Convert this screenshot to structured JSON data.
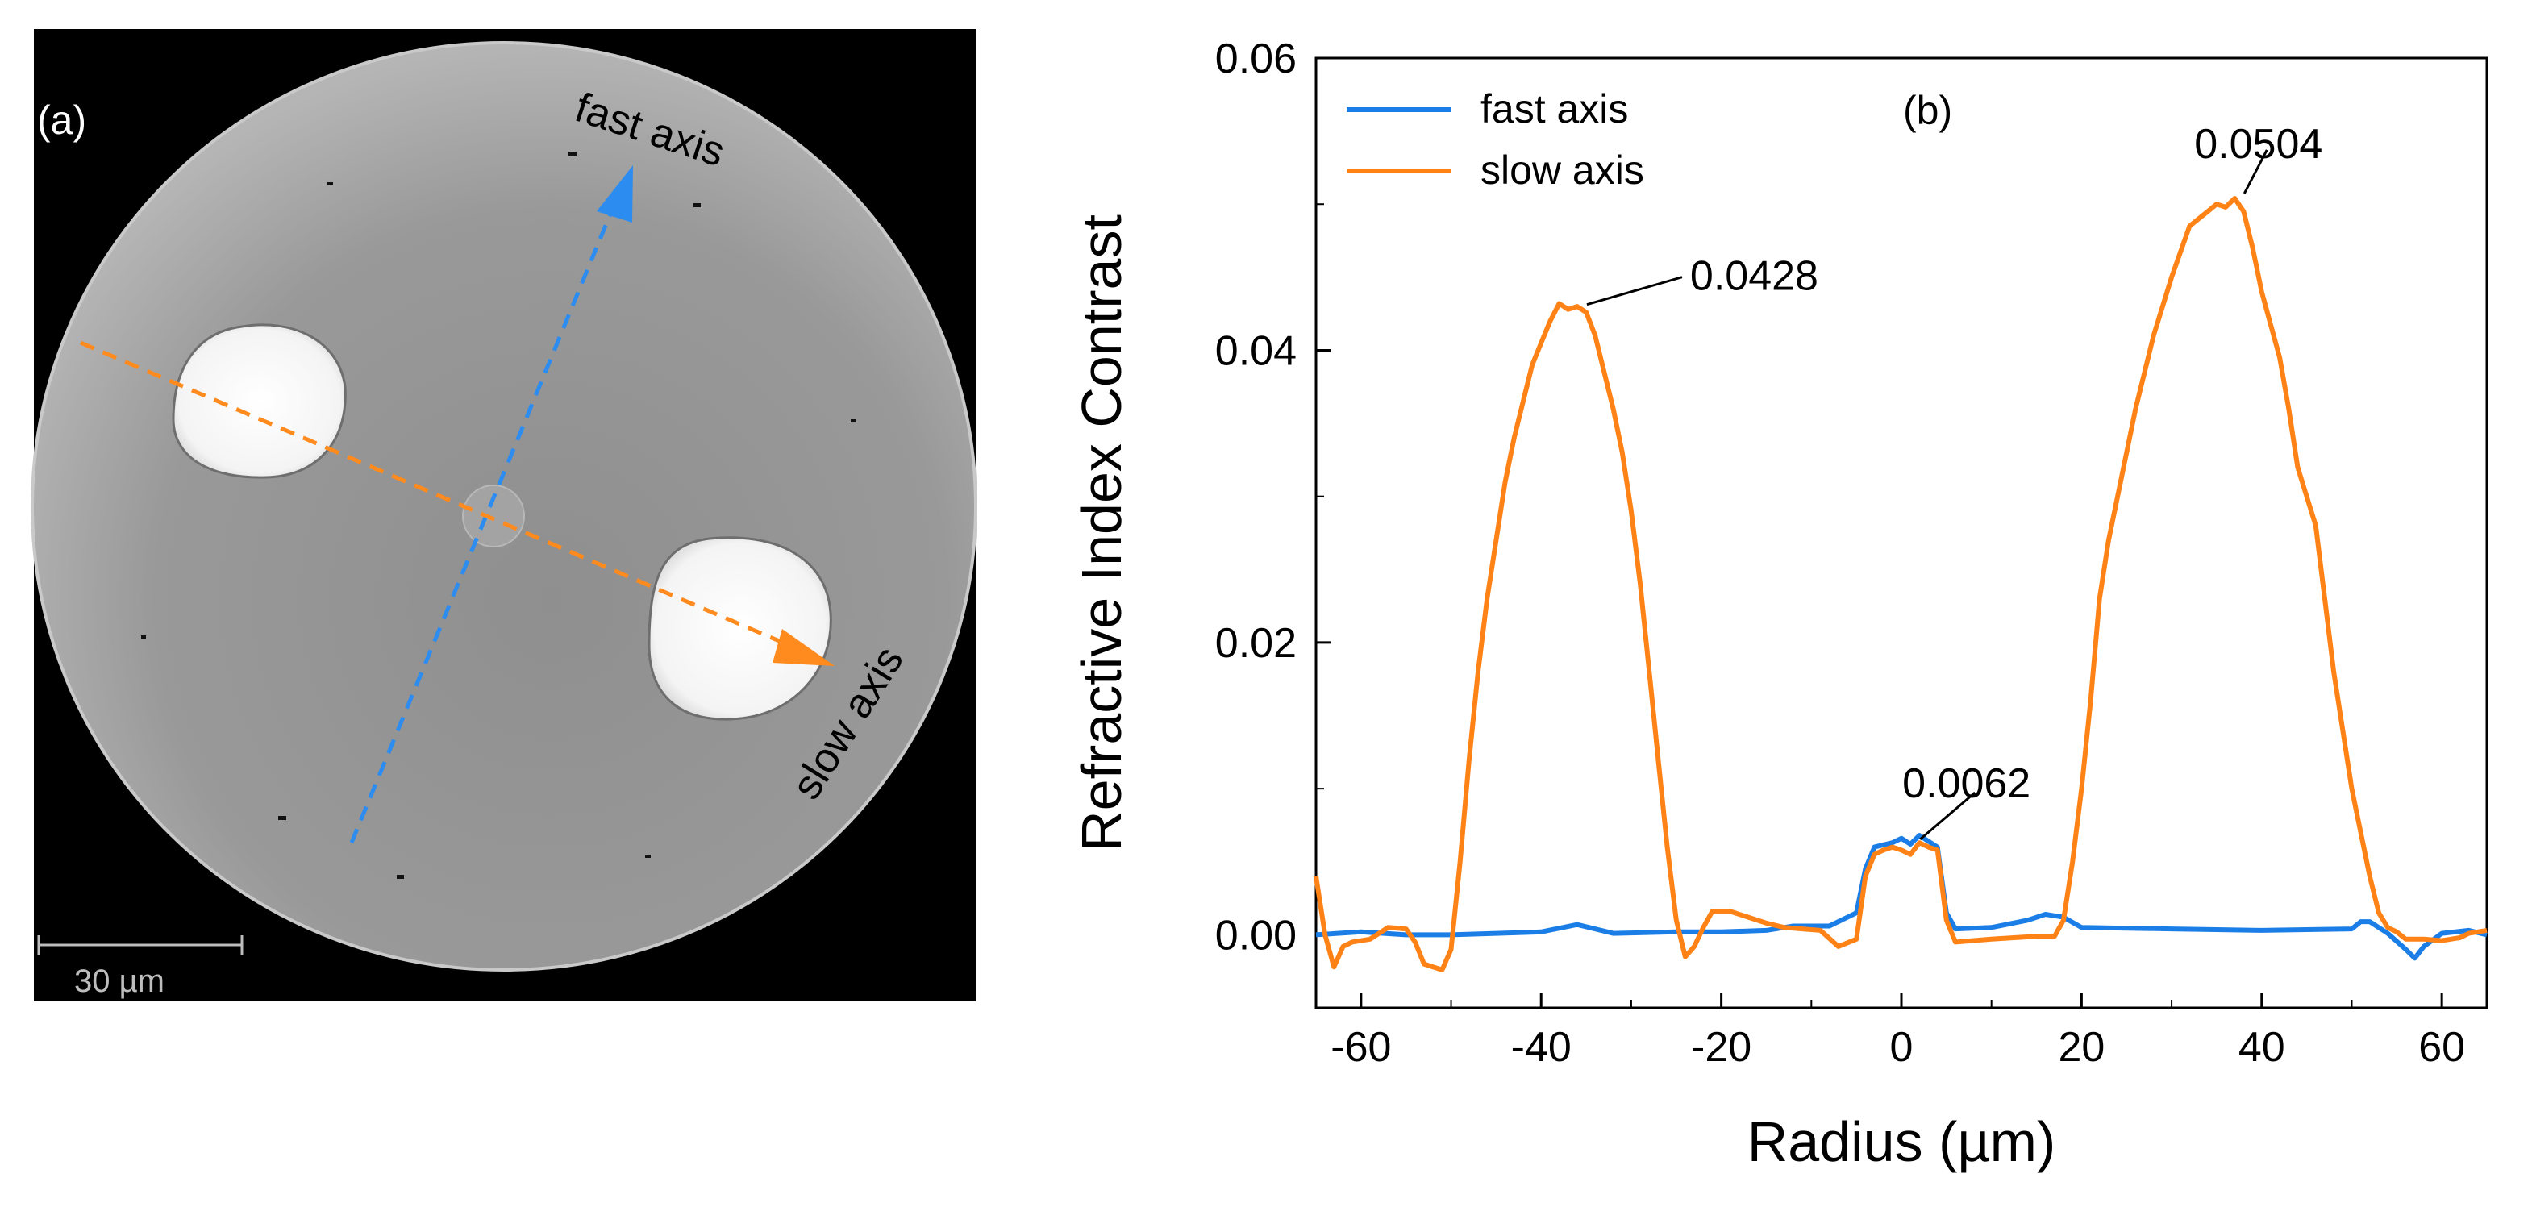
{
  "panel_a": {
    "label": "(a)",
    "fast_axis_label": "fast axis",
    "slow_axis_label": "slow axis",
    "scale_bar_label": "30 µm",
    "colors": {
      "fast": "#2c8cf0",
      "slow": "#ff8a1e"
    }
  },
  "chart_data": {
    "type": "line",
    "panel_label": "(b)",
    "title": "",
    "xlabel": "Radius (µm)",
    "ylabel": "Refractive Index Contrast",
    "xlim": [
      -65,
      65
    ],
    "ylim": [
      -0.005,
      0.06
    ],
    "x_ticks": [
      -60,
      -40,
      -20,
      0,
      20,
      40,
      60
    ],
    "x_tick_labels": [
      "-60",
      "-40",
      "-20",
      "0",
      "20",
      "40",
      "60"
    ],
    "y_ticks": [
      0.0,
      0.02,
      0.04,
      0.06
    ],
    "y_tick_labels": [
      "0.00",
      "0.02",
      "0.04",
      "0.06"
    ],
    "legend_position": "top-left",
    "series": [
      {
        "name": "fast axis",
        "color": "#1a7ee6",
        "points": [
          [
            -65,
            0.0
          ],
          [
            -60,
            0.0002
          ],
          [
            -55,
            0.0
          ],
          [
            -50,
            0.0
          ],
          [
            -45,
            0.0001
          ],
          [
            -40,
            0.0002
          ],
          [
            -36,
            0.0007
          ],
          [
            -32,
            0.0001
          ],
          [
            -25,
            0.0002
          ],
          [
            -20,
            0.0002
          ],
          [
            -15,
            0.0003
          ],
          [
            -12,
            0.0006
          ],
          [
            -8,
            0.0006
          ],
          [
            -5,
            0.0015
          ],
          [
            -4,
            0.0045
          ],
          [
            -3,
            0.006
          ],
          [
            -1,
            0.0063
          ],
          [
            0,
            0.0066
          ],
          [
            1,
            0.0062
          ],
          [
            2,
            0.0068
          ],
          [
            3,
            0.0064
          ],
          [
            4,
            0.006
          ],
          [
            5,
            0.0015
          ],
          [
            6,
            0.0004
          ],
          [
            10,
            0.0005
          ],
          [
            14,
            0.001
          ],
          [
            16,
            0.0014
          ],
          [
            18,
            0.0012
          ],
          [
            20,
            0.0005
          ],
          [
            30,
            0.0004
          ],
          [
            40,
            0.0003
          ],
          [
            50,
            0.0004
          ],
          [
            51,
            0.0009
          ],
          [
            52,
            0.0009
          ],
          [
            54,
            0.0001
          ],
          [
            56,
            -0.001
          ],
          [
            57,
            -0.0016
          ],
          [
            58,
            -0.0008
          ],
          [
            60,
            0.0001
          ],
          [
            63,
            0.0003
          ],
          [
            65,
            0.0
          ]
        ]
      },
      {
        "name": "slow axis",
        "color": "#ff8216",
        "points": [
          [
            -65,
            0.004
          ],
          [
            -64,
            0.0
          ],
          [
            -63,
            -0.0022
          ],
          [
            -62,
            -0.0008
          ],
          [
            -61,
            -0.0005
          ],
          [
            -59,
            -0.0003
          ],
          [
            -57,
            0.0005
          ],
          [
            -55,
            0.0004
          ],
          [
            -54,
            -0.0005
          ],
          [
            -53,
            -0.002
          ],
          [
            -51,
            -0.0024
          ],
          [
            -50,
            -0.001
          ],
          [
            -49,
            0.005
          ],
          [
            -48,
            0.012
          ],
          [
            -47,
            0.018
          ],
          [
            -46,
            0.023
          ],
          [
            -45,
            0.027
          ],
          [
            -44,
            0.031
          ],
          [
            -43,
            0.034
          ],
          [
            -42,
            0.0365
          ],
          [
            -41,
            0.039
          ],
          [
            -40,
            0.0405
          ],
          [
            -39,
            0.042
          ],
          [
            -38,
            0.0432
          ],
          [
            -37,
            0.0428
          ],
          [
            -36,
            0.043
          ],
          [
            -35,
            0.0426
          ],
          [
            -34,
            0.041
          ],
          [
            -33,
            0.0385
          ],
          [
            -32,
            0.036
          ],
          [
            -31,
            0.033
          ],
          [
            -30,
            0.029
          ],
          [
            -29,
            0.024
          ],
          [
            -28,
            0.018
          ],
          [
            -27,
            0.012
          ],
          [
            -26,
            0.006
          ],
          [
            -25,
            0.001
          ],
          [
            -24,
            -0.0015
          ],
          [
            -23,
            -0.0008
          ],
          [
            -22,
            0.0005
          ],
          [
            -21,
            0.0016
          ],
          [
            -19,
            0.0016
          ],
          [
            -17,
            0.0012
          ],
          [
            -15,
            0.0008
          ],
          [
            -13,
            0.0005
          ],
          [
            -11,
            0.0004
          ],
          [
            -9,
            0.0003
          ],
          [
            -7,
            -0.0008
          ],
          [
            -5,
            -0.0003
          ],
          [
            -4,
            0.004
          ],
          [
            -3,
            0.0055
          ],
          [
            -2,
            0.0058
          ],
          [
            -1,
            0.006
          ],
          [
            0,
            0.0058
          ],
          [
            1,
            0.0055
          ],
          [
            2,
            0.0063
          ],
          [
            3,
            0.006
          ],
          [
            4,
            0.0058
          ],
          [
            5,
            0.001
          ],
          [
            6,
            -0.0005
          ],
          [
            10,
            -0.0003
          ],
          [
            15,
            -0.0001
          ],
          [
            17,
            -0.0001
          ],
          [
            18,
            0.001
          ],
          [
            19,
            0.005
          ],
          [
            20,
            0.01
          ],
          [
            21,
            0.016
          ],
          [
            22,
            0.023
          ],
          [
            23,
            0.027
          ],
          [
            24,
            0.03
          ],
          [
            26,
            0.036
          ],
          [
            28,
            0.041
          ],
          [
            30,
            0.045
          ],
          [
            32,
            0.0485
          ],
          [
            34,
            0.0495
          ],
          [
            35,
            0.05
          ],
          [
            36,
            0.0498
          ],
          [
            37,
            0.0504
          ],
          [
            38,
            0.0495
          ],
          [
            39,
            0.047
          ],
          [
            40,
            0.044
          ],
          [
            42,
            0.0395
          ],
          [
            43,
            0.036
          ],
          [
            44,
            0.032
          ],
          [
            45,
            0.03
          ],
          [
            46,
            0.028
          ],
          [
            47,
            0.023
          ],
          [
            48,
            0.018
          ],
          [
            49,
            0.014
          ],
          [
            50,
            0.01
          ],
          [
            51,
            0.007
          ],
          [
            52,
            0.004
          ],
          [
            53,
            0.0015
          ],
          [
            54,
            0.0005
          ],
          [
            55,
            0.0002
          ],
          [
            56,
            -0.0003
          ],
          [
            58,
            -0.0003
          ],
          [
            60,
            -0.0004
          ],
          [
            62,
            -0.0002
          ],
          [
            63,
            0.0001
          ],
          [
            65,
            0.0003
          ]
        ]
      }
    ],
    "annotations": [
      {
        "text": "0.0428",
        "x": -36,
        "y": 0.0428
      },
      {
        "text": "0.0504",
        "x": 37,
        "y": 0.0504
      },
      {
        "text": "0.0062",
        "x": 1,
        "y": 0.0062
      }
    ]
  }
}
